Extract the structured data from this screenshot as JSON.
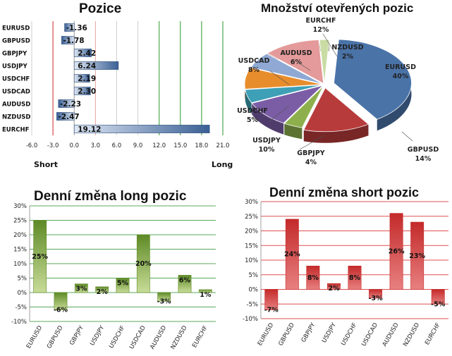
{
  "chart_data": [
    {
      "type": "bar",
      "orientation": "horizontal",
      "title": "Pozice",
      "categories": [
        "EURUSD",
        "GBPUSD",
        "GBPJPY",
        "USDJPY",
        "USDCHF",
        "USDCAD",
        "AUDUSD",
        "NZDUSD",
        "EURCHF"
      ],
      "values": [
        -1.36,
        -1.78,
        2.42,
        6.24,
        2.19,
        2.3,
        -2.23,
        -2.47,
        19.12
      ],
      "value_labels": [
        "-1.36",
        "-1.78",
        "2.42",
        "6.24",
        "2.19",
        "2.30",
        "-2.23",
        "-2.47",
        "19.12"
      ],
      "xlim": [
        -6,
        21
      ],
      "xticks": [
        "-6.0",
        "-3.0",
        "0.0",
        "3.0",
        "6.0",
        "9.0",
        "12.0",
        "15.0",
        "18.0",
        "21.0"
      ],
      "left_caption": "Short",
      "right_caption": "Long",
      "colors": {
        "bar": "#3a5f95",
        "bar_light": "#dfe8f4",
        "short_line": "#d94c4c",
        "long_line": "#4fa84f"
      }
    },
    {
      "type": "pie",
      "title": "Množství otevřených pozic",
      "slices": [
        {
          "label": "EURUSD",
          "value": 40,
          "value_label": "40%",
          "color": "#4a73a8"
        },
        {
          "label": "GBPUSD",
          "value": 14,
          "value_label": "14%",
          "color": "#b83b3b"
        },
        {
          "label": "GBPJPY",
          "value": 4,
          "value_label": "4%",
          "color": "#8db04d"
        },
        {
          "label": "USDJPY",
          "value": 10,
          "value_label": "10%",
          "color": "#7b5da6"
        },
        {
          "label": "USDCHF",
          "value": 5,
          "value_label": "5%",
          "color": "#3ea0b6"
        },
        {
          "label": "USDCAD",
          "value": 8,
          "value_label": "8%",
          "color": "#e88d2c"
        },
        {
          "label": "AUDUSD",
          "value": 6,
          "value_label": "6%",
          "color": "#8fa9d4"
        },
        {
          "label": "EURCHF",
          "value": 12,
          "value_label": "12%",
          "color": "#e49a9a"
        },
        {
          "label": "NZDUSD",
          "value": 2,
          "value_label": "2%",
          "color": "#c9dca4"
        }
      ]
    },
    {
      "type": "bar",
      "title": "Denní změna long pozic",
      "categories": [
        "EURUSD",
        "GBPUSD",
        "GBPJPY",
        "USDJPY",
        "USDCHF",
        "USDCAD",
        "AUDUSD",
        "NZDUSD",
        "EURCHF"
      ],
      "values": [
        25,
        -6,
        3,
        2,
        5,
        20,
        -3,
        6,
        1
      ],
      "value_labels": [
        "25%",
        "-6%",
        "3%",
        "2%",
        "5%",
        "20%",
        "-3%",
        "6%",
        "1%"
      ],
      "ylim": [
        -10,
        30
      ],
      "yticks": [
        "-10%",
        "-5%",
        "0%",
        "5%",
        "10%",
        "15%",
        "20%",
        "25%",
        "30%"
      ],
      "colors": {
        "bar": "#5e8a26",
        "bar_light": "#c8dc98",
        "grid": "#5aa85a"
      }
    },
    {
      "type": "bar",
      "title": "Denní změna short pozic",
      "categories": [
        "EURUSD",
        "GBPUSD",
        "GBPJPY",
        "USDJPY",
        "USDCHF",
        "USDCAD",
        "AUDUSD",
        "NZDUSD",
        "EURCHF"
      ],
      "values": [
        -7,
        24,
        8,
        2,
        8,
        -3,
        26,
        23,
        -5
      ],
      "value_labels": [
        "-7%",
        "24%",
        "8%",
        "2%",
        "8%",
        "-3%",
        "26%",
        "23%",
        "-5%"
      ],
      "ylim": [
        -10,
        30
      ],
      "yticks": [
        "-10%",
        "-5%",
        "0%",
        "5%",
        "10%",
        "15%",
        "20%",
        "25%",
        "30%"
      ],
      "colors": {
        "bar": "#c42a2a",
        "bar_light": "#e88080",
        "grid": "#e05050"
      }
    }
  ]
}
